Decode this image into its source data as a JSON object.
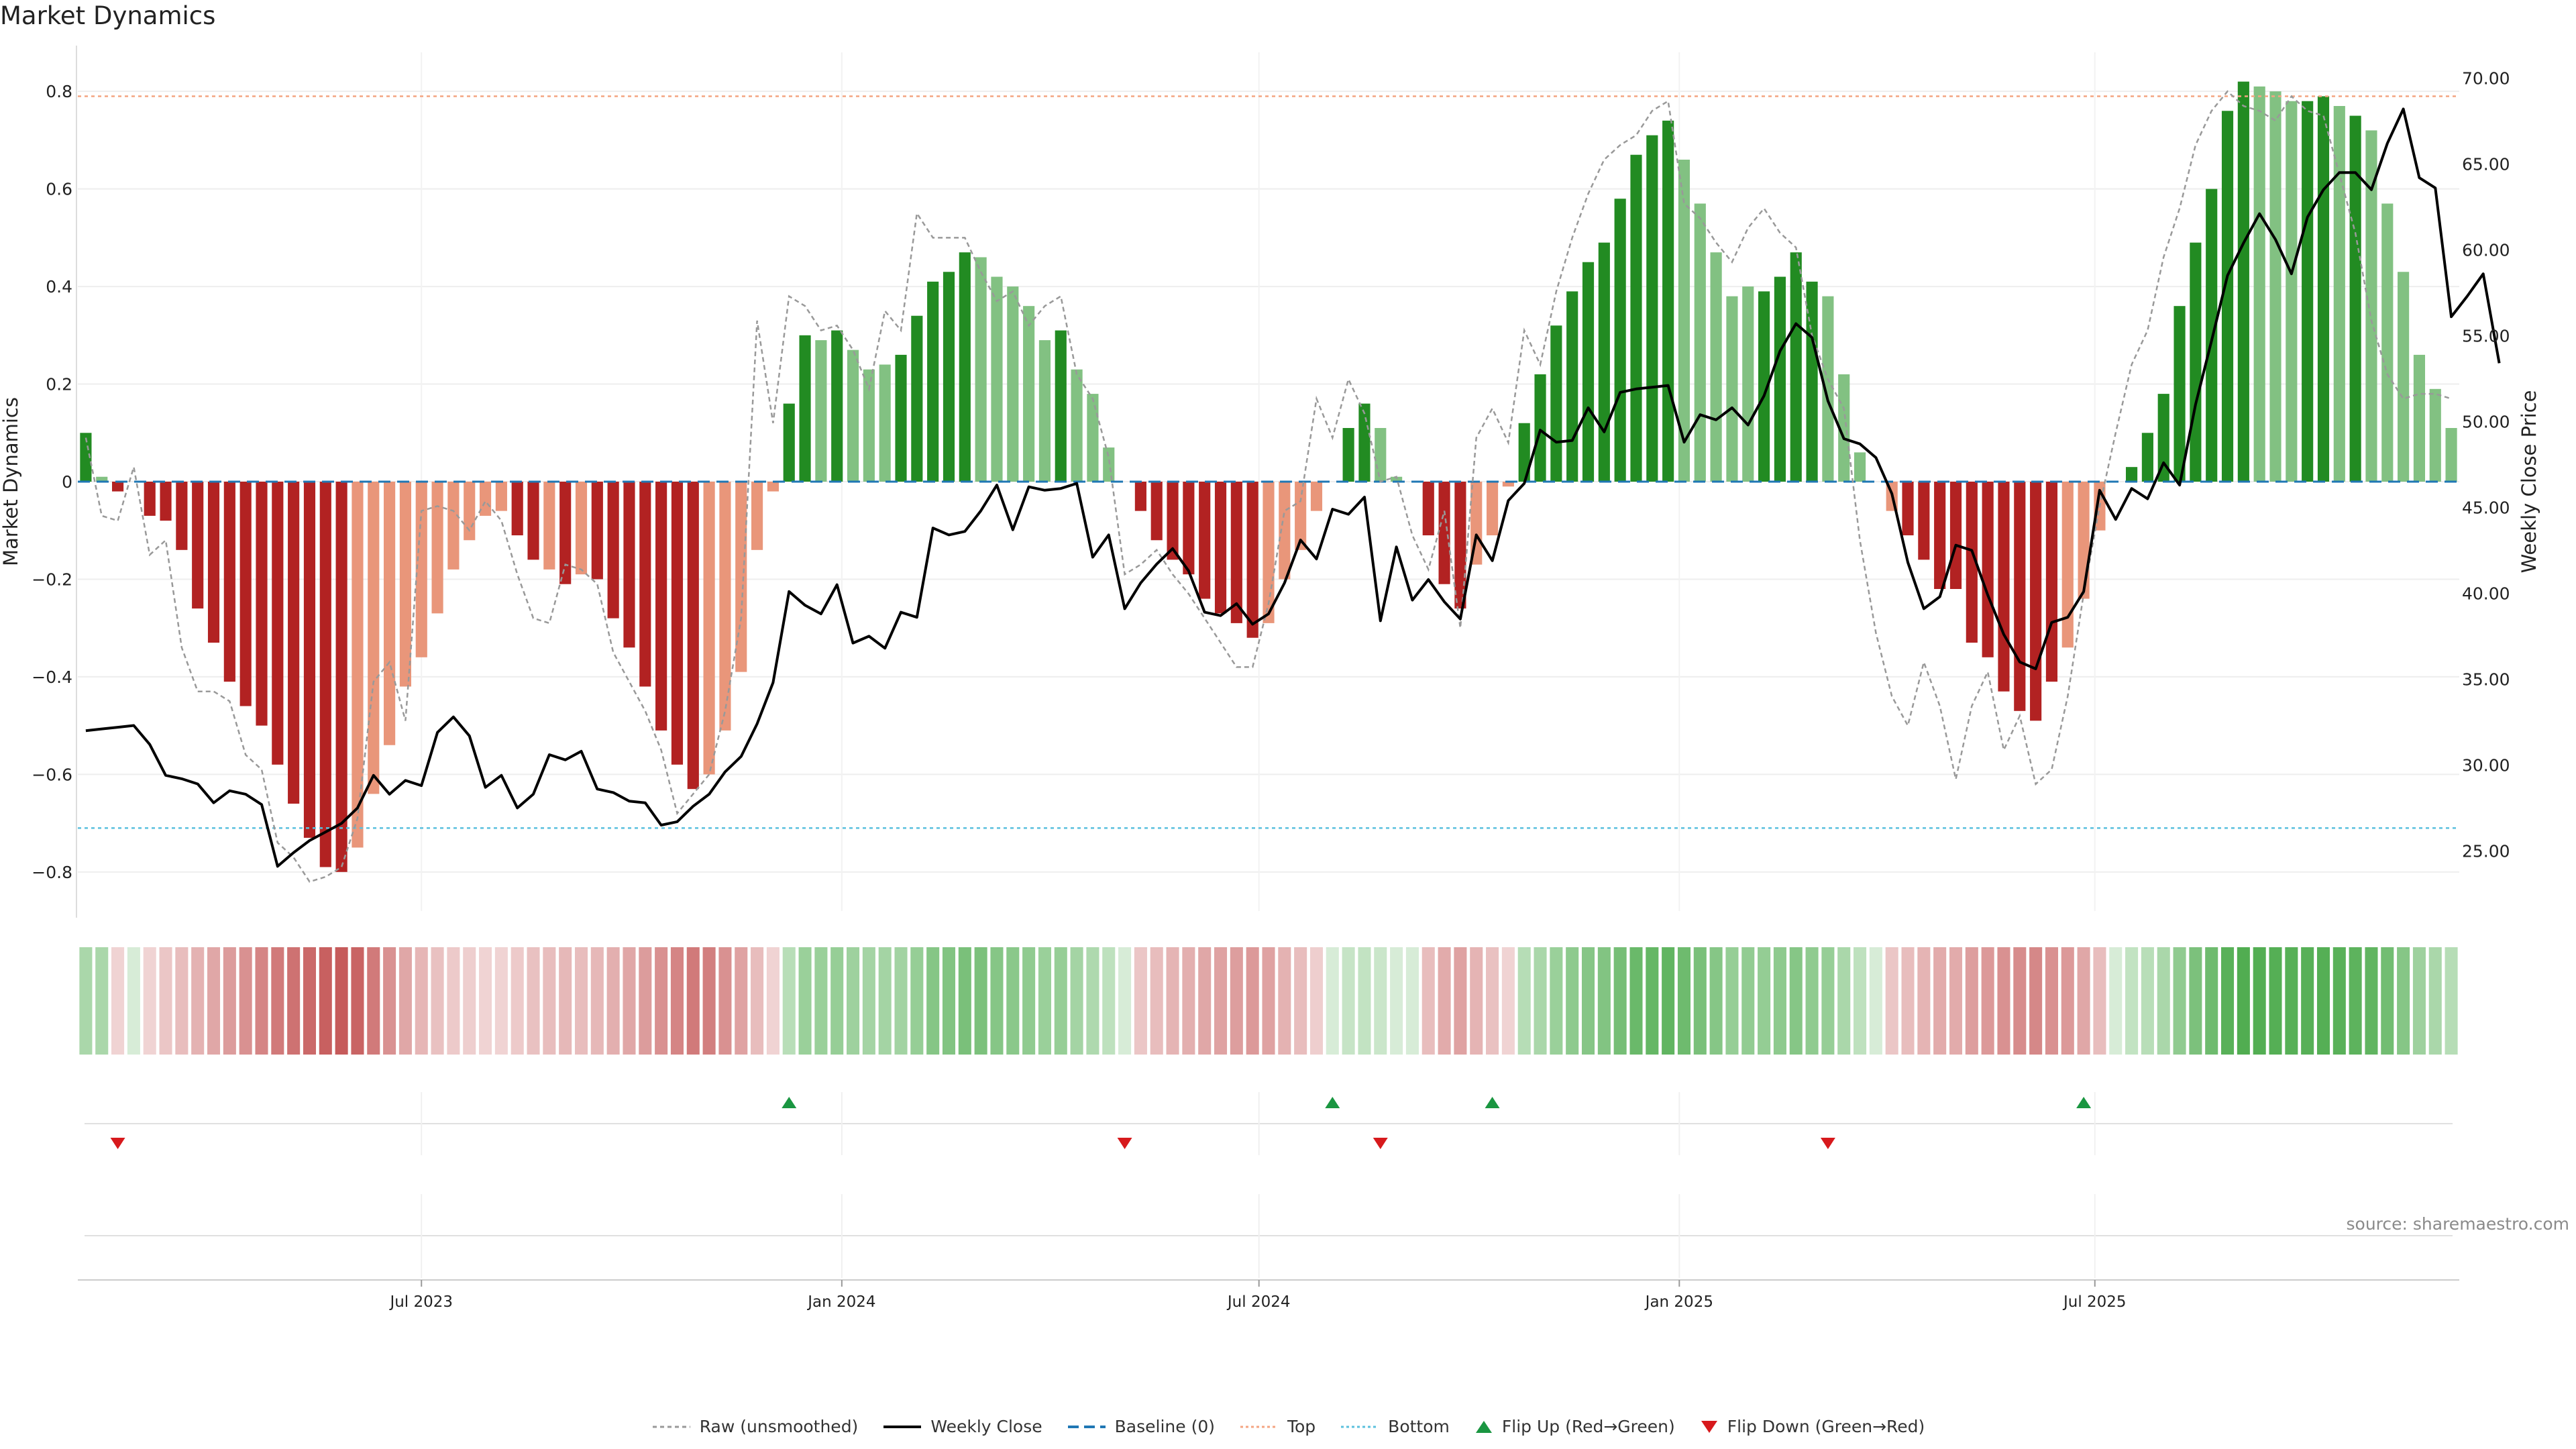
{
  "title": "Market Dynamics",
  "source": "source: sharemaestro.com",
  "chart_data": {
    "type": "bar",
    "title": "Market Dynamics",
    "ylabel": "Market Dynamics",
    "y2label": "Weekly Close Price",
    "ylim": [
      -0.88,
      0.88
    ],
    "y2lim": [
      21.5,
      71.5
    ],
    "yticks": [
      0.8,
      0.6,
      0.4,
      0.2,
      0,
      -0.2,
      -0.4,
      -0.6,
      -0.8
    ],
    "ytick_labels": [
      "0.8",
      "0.6",
      "0.4",
      "0.2",
      "0",
      "−0.2",
      "−0.4",
      "−0.6",
      "−0.8"
    ],
    "y2ticks": [
      70,
      65,
      60,
      55,
      50,
      45,
      40,
      35,
      30,
      25
    ],
    "y2tick_labels": [
      "70.00",
      "65.00",
      "60.00",
      "55.00",
      "50.00",
      "45.00",
      "40.00",
      "35.00",
      "30.00",
      "25.00"
    ],
    "xticks": [
      {
        "label": "Jul 2023",
        "index": 21.5
      },
      {
        "label": "Jan 2024",
        "index": 47.8
      },
      {
        "label": "Jul 2024",
        "index": 73.9
      },
      {
        "label": "Jan 2025",
        "index": 100.2
      },
      {
        "label": "Jul 2025",
        "index": 126.2
      }
    ],
    "top_line": 0.79,
    "bottom_line": -0.71,
    "colors": {
      "strong_green": "#228b22",
      "light_green": "#82c182",
      "strong_red": "#b22222",
      "light_red": "#e9967a",
      "raw": "#999999",
      "close": "#000000",
      "baseline": "#1f77b4",
      "top": "#f4a582",
      "bottom": "#5bc0de",
      "flip_up": "#1a9641",
      "flip_down": "#d7191c"
    },
    "bars": [
      0.1,
      0.01,
      -0.02,
      0,
      -0.07,
      -0.08,
      -0.14,
      -0.26,
      -0.33,
      -0.41,
      -0.46,
      -0.5,
      -0.58,
      -0.66,
      -0.73,
      -0.79,
      -0.8,
      -0.75,
      -0.64,
      -0.54,
      -0.42,
      -0.36,
      -0.27,
      -0.18,
      -0.12,
      -0.07,
      -0.06,
      -0.11,
      -0.16,
      -0.18,
      -0.21,
      -0.19,
      -0.2,
      -0.28,
      -0.34,
      -0.42,
      -0.51,
      -0.58,
      -0.63,
      -0.6,
      -0.51,
      -0.39,
      -0.14,
      -0.02,
      0.16,
      0.3,
      0.29,
      0.31,
      0.27,
      0.23,
      0.24,
      0.26,
      0.34,
      0.41,
      0.43,
      0.47,
      0.46,
      0.42,
      0.4,
      0.36,
      0.29,
      0.31,
      0.23,
      0.18,
      0.07,
      0,
      -0.06,
      -0.12,
      -0.16,
      -0.19,
      -0.24,
      -0.27,
      -0.29,
      -0.32,
      -0.29,
      -0.2,
      -0.14,
      -0.06,
      0,
      0.11,
      0.16,
      0.11,
      0.01,
      0,
      -0.11,
      -0.21,
      -0.26,
      -0.17,
      -0.11,
      -0.01,
      0.12,
      0.22,
      0.32,
      0.39,
      0.45,
      0.49,
      0.58,
      0.67,
      0.71,
      0.74,
      0.66,
      0.57,
      0.47,
      0.38,
      0.4,
      0.39,
      0.42,
      0.47,
      0.41,
      0.38,
      0.22,
      0.06,
      0,
      -0.06,
      -0.11,
      -0.16,
      -0.22,
      -0.22,
      -0.33,
      -0.36,
      -0.43,
      -0.47,
      -0.49,
      -0.41,
      -0.34,
      -0.24,
      -0.1,
      0,
      0.03,
      0.1,
      0.18,
      0.36,
      0.49,
      0.6,
      0.76,
      0.82,
      0.81,
      0.8,
      0.78,
      0.78,
      0.79,
      0.77,
      0.75,
      0.72,
      0.57,
      0.43,
      0.26,
      0.19,
      0.11
    ],
    "bar_strong": [
      1,
      0,
      1,
      1,
      1,
      1,
      1,
      1,
      1,
      1,
      1,
      1,
      1,
      1,
      1,
      1,
      1,
      0,
      0,
      0,
      0,
      0,
      0,
      0,
      0,
      0,
      0,
      1,
      1,
      0,
      1,
      0,
      1,
      1,
      1,
      1,
      1,
      1,
      1,
      0,
      0,
      0,
      0,
      0,
      1,
      1,
      0,
      1,
      0,
      0,
      0,
      1,
      1,
      1,
      1,
      1,
      0,
      0,
      0,
      0,
      0,
      1,
      0,
      0,
      0,
      0,
      1,
      1,
      1,
      1,
      1,
      1,
      1,
      1,
      0,
      0,
      0,
      0,
      0,
      1,
      1,
      0,
      0,
      0,
      1,
      1,
      1,
      0,
      0,
      0,
      1,
      1,
      1,
      1,
      1,
      1,
      1,
      1,
      1,
      1,
      0,
      0,
      0,
      0,
      0,
      1,
      1,
      1,
      1,
      0,
      0,
      0,
      0,
      0,
      1,
      1,
      1,
      1,
      1,
      1,
      1,
      1,
      1,
      1,
      0,
      0,
      0,
      0,
      1,
      1,
      1,
      1,
      1,
      1,
      1,
      1,
      0,
      0,
      0,
      1,
      1,
      0,
      1,
      0,
      0,
      0,
      0,
      0,
      0
    ],
    "raw": [
      0.09,
      -0.07,
      -0.08,
      0.03,
      -0.15,
      -0.12,
      -0.34,
      -0.43,
      -0.43,
      -0.45,
      -0.56,
      -0.59,
      -0.74,
      -0.77,
      -0.82,
      -0.81,
      -0.79,
      -0.69,
      -0.41,
      -0.37,
      -0.49,
      -0.06,
      -0.05,
      -0.06,
      -0.1,
      -0.04,
      -0.08,
      -0.19,
      -0.28,
      -0.29,
      -0.17,
      -0.18,
      -0.21,
      -0.35,
      -0.41,
      -0.47,
      -0.55,
      -0.68,
      -0.64,
      -0.6,
      -0.47,
      -0.28,
      0.33,
      0.12,
      0.38,
      0.36,
      0.31,
      0.32,
      0.27,
      0.19,
      0.35,
      0.31,
      0.55,
      0.5,
      0.5,
      0.5,
      0.43,
      0.37,
      0.39,
      0.32,
      0.36,
      0.38,
      0.22,
      0.17,
      0.05,
      -0.19,
      -0.17,
      -0.14,
      -0.19,
      -0.23,
      -0.28,
      -0.33,
      -0.38,
      -0.38,
      -0.25,
      -0.06,
      -0.04,
      0.17,
      0.09,
      0.21,
      0.14,
      0,
      0.01,
      -0.11,
      -0.18,
      -0.06,
      -0.3,
      0.09,
      0.15,
      0.08,
      0.31,
      0.24,
      0.39,
      0.5,
      0.59,
      0.66,
      0.69,
      0.71,
      0.76,
      0.78,
      0.57,
      0.54,
      0.49,
      0.45,
      0.52,
      0.56,
      0.51,
      0.48,
      0.3,
      0.21,
      0.15,
      -0.12,
      -0.31,
      -0.44,
      -0.5,
      -0.37,
      -0.46,
      -0.61,
      -0.46,
      -0.39,
      -0.55,
      -0.48,
      -0.62,
      -0.59,
      -0.44,
      -0.23,
      -0.05,
      0.1,
      0.24,
      0.31,
      0.46,
      0.56,
      0.69,
      0.76,
      0.8,
      0.77,
      0.76,
      0.74,
      0.79,
      0.76,
      0.75,
      0.63,
      0.51,
      0.33,
      0.22,
      0.17,
      0.18,
      0.18,
      0.17
    ],
    "close": [
      32,
      32.1,
      32.2,
      32.3,
      31.2,
      29.4,
      29.2,
      28.9,
      27.8,
      28.5,
      28.3,
      27.7,
      24.1,
      24.9,
      25.6,
      26.1,
      26.6,
      27.5,
      29.4,
      28.3,
      29.1,
      28.8,
      31.9,
      32.8,
      31.7,
      28.7,
      29.4,
      27.5,
      28.3,
      30.6,
      30.3,
      30.8,
      28.6,
      28.4,
      27.9,
      27.8,
      26.5,
      26.7,
      27.6,
      28.3,
      29.6,
      30.5,
      32.4,
      34.8,
      40.1,
      39.3,
      38.8,
      40.5,
      37.1,
      37.5,
      36.8,
      38.9,
      38.6,
      43.8,
      43.4,
      43.6,
      44.8,
      46.3,
      43.7,
      46.2,
      46,
      46.1,
      46.4,
      42.1,
      43.4,
      39.1,
      40.6,
      41.7,
      42.6,
      41.3,
      38.9,
      38.7,
      39.4,
      38.2,
      38.8,
      40.6,
      43.1,
      42,
      44.9,
      44.6,
      45.6,
      38.4,
      42.7,
      39.6,
      40.8,
      39.5,
      38.5,
      43.4,
      41.9,
      45.4,
      46.4,
      49.5,
      48.8,
      48.9,
      50.8,
      49.4,
      51.7,
      51.9,
      52,
      52.1,
      48.8,
      50.4,
      50.1,
      50.8,
      49.8,
      51.5,
      54.1,
      55.7,
      54.9,
      51.2,
      49,
      48.7,
      47.9,
      45.8,
      41.8,
      39.1,
      39.8,
      42.8,
      42.5,
      39.9,
      37.6,
      36,
      35.6,
      38.3,
      38.6,
      40.1,
      46,
      44.3,
      46.1,
      45.5,
      47.6,
      46.3,
      51,
      54.7,
      58.5,
      60.4,
      62.1,
      60.6,
      58.6,
      61.9,
      63.5,
      64.5,
      64.5,
      63.5,
      66.2,
      68.2,
      64.2,
      63.6,
      56.1,
      57.3,
      58.6,
      53.4
    ],
    "strip_shades": [
      0.42,
      0.42,
      0.2,
      0.2,
      0.2,
      0.26,
      0.3,
      0.35,
      0.4,
      0.45,
      0.5,
      0.55,
      0.6,
      0.64,
      0.68,
      0.72,
      0.74,
      0.7,
      0.6,
      0.5,
      0.4,
      0.33,
      0.28,
      0.24,
      0.22,
      0.2,
      0.2,
      0.24,
      0.28,
      0.3,
      0.32,
      0.3,
      0.32,
      0.36,
      0.4,
      0.45,
      0.5,
      0.55,
      0.6,
      0.58,
      0.5,
      0.42,
      0.3,
      0.2,
      0.35,
      0.5,
      0.5,
      0.52,
      0.48,
      0.45,
      0.45,
      0.46,
      0.52,
      0.6,
      0.62,
      0.66,
      0.65,
      0.6,
      0.58,
      0.55,
      0.5,
      0.52,
      0.45,
      0.4,
      0.32,
      0.2,
      0.26,
      0.3,
      0.34,
      0.36,
      0.4,
      0.42,
      0.44,
      0.46,
      0.42,
      0.35,
      0.3,
      0.22,
      0.2,
      0.28,
      0.3,
      0.26,
      0.2,
      0.2,
      0.3,
      0.38,
      0.42,
      0.34,
      0.28,
      0.2,
      0.36,
      0.42,
      0.5,
      0.56,
      0.6,
      0.62,
      0.68,
      0.74,
      0.76,
      0.78,
      0.72,
      0.66,
      0.6,
      0.52,
      0.54,
      0.53,
      0.56,
      0.6,
      0.55,
      0.52,
      0.42,
      0.32,
      0.2,
      0.26,
      0.3,
      0.34,
      0.38,
      0.38,
      0.44,
      0.46,
      0.5,
      0.52,
      0.54,
      0.5,
      0.46,
      0.4,
      0.3,
      0.2,
      0.3,
      0.35,
      0.42,
      0.55,
      0.65,
      0.72,
      0.82,
      0.86,
      0.85,
      0.84,
      0.83,
      0.83,
      0.84,
      0.82,
      0.8,
      0.78,
      0.7,
      0.6,
      0.48,
      0.42,
      0.36
    ],
    "flip_up_index": [
      44,
      78,
      88,
      125
    ],
    "flip_down_index": [
      2,
      65,
      81,
      109
    ],
    "legend": [
      "Raw (unsmoothed)",
      "Weekly Close",
      "Baseline (0)",
      "Top",
      "Bottom",
      "Flip Up (Red→Green)",
      "Flip Down (Green→Red)"
    ]
  }
}
